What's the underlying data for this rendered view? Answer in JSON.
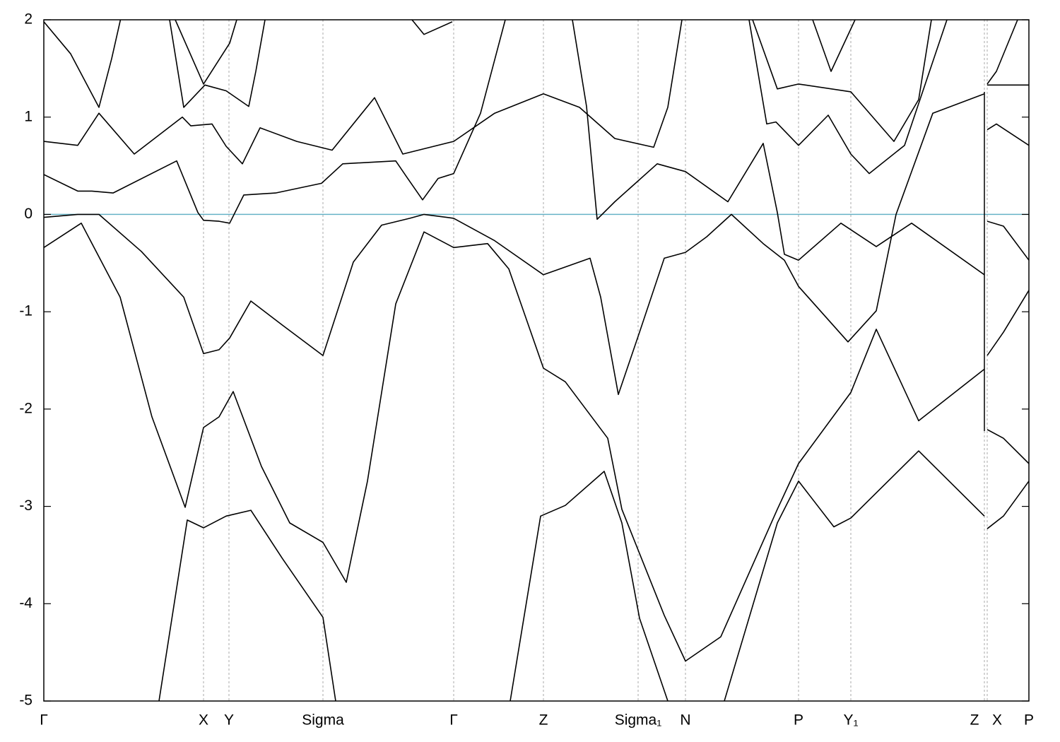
{
  "chart_data": {
    "type": "line",
    "color": "#000000",
    "grid": true,
    "fermi_level": 0,
    "fermi_color": "#66b3c6",
    "xlim": [
      0,
      1394
    ],
    "ylim": [
      -5,
      2
    ],
    "yticks": [
      -5,
      -4,
      -3,
      -2,
      -1,
      0,
      1,
      2
    ],
    "xticks": [
      {
        "value": 0,
        "label": "Γ"
      },
      {
        "value": 226,
        "label": "X"
      },
      {
        "value": 262,
        "label": "Y"
      },
      {
        "value": 395,
        "label": "Sigma"
      },
      {
        "value": 580,
        "label": "Γ"
      },
      {
        "value": 707,
        "label": "Z"
      },
      {
        "value": 841,
        "label": "Sigma₁"
      },
      {
        "value": 908,
        "label": "N"
      },
      {
        "value": 1068,
        "label": "P"
      },
      {
        "value": 1142,
        "label": "Y₁"
      },
      {
        "value": 1331,
        "label": "Z"
      },
      {
        "value": 1335,
        "label": "X"
      },
      {
        "value": 1394,
        "label": "P"
      }
    ],
    "series": [
      {
        "x": [
          0,
          38,
          78,
          96,
          110
        ],
        "values": [
          1.98,
          1.65,
          1.1,
          1.6,
          2.05
        ]
      },
      {
        "x": [
          0,
          48,
          78,
          128,
          196,
          208,
          238,
          258,
          281,
          306,
          358,
          408,
          468,
          508,
          580,
          638,
          707,
          758,
          808,
          863,
          883,
          903
        ],
        "values": [
          0.75,
          0.71,
          1.04,
          0.62,
          1.0,
          0.91,
          0.93,
          0.7,
          0.52,
          0.89,
          0.75,
          0.66,
          1.2,
          0.62,
          0.75,
          1.04,
          1.24,
          1.1,
          0.78,
          0.69,
          1.1,
          2.0
        ]
      },
      {
        "x": [
          0,
          48,
          68,
          98,
          188,
          218,
          226,
          248,
          263,
          283,
          328,
          393,
          423,
          498,
          513,
          536,
          558,
          580,
          618,
          653
        ],
        "values": [
          0.41,
          0.24,
          0.24,
          0.22,
          0.55,
          0.02,
          -0.06,
          -0.07,
          -0.09,
          0.2,
          0.22,
          0.32,
          0.52,
          0.55,
          0.39,
          0.15,
          0.37,
          0.42,
          1.04,
          2.0
        ]
      },
      {
        "x": [
          0,
          48,
          78,
          138,
          198,
          226,
          248,
          263,
          293,
          338,
          395,
          438,
          478,
          518,
          538,
          580,
          638,
          707,
          773,
          788,
          813,
          843,
          878,
          908,
          938,
          973,
          1018,
          1048,
          1068,
          1138,
          1178,
          1206,
          1258,
          1331
        ],
        "values": [
          -0.03,
          0,
          0,
          -0.38,
          -0.85,
          -1.43,
          -1.39,
          -1.27,
          -0.89,
          -1.14,
          -1.45,
          -0.49,
          -0.11,
          -0.04,
          0,
          -0.04,
          -0.27,
          -0.62,
          -0.45,
          -0.85,
          -1.85,
          -1.21,
          -0.45,
          -0.39,
          -0.23,
          0,
          -0.3,
          -0.47,
          -0.74,
          -1.31,
          -0.99,
          0,
          1.04,
          1.24
        ]
      },
      {
        "x": [
          0,
          53,
          108,
          153,
          200,
          226,
          248,
          268,
          308,
          348,
          395,
          428,
          458,
          498,
          538,
          580,
          628,
          658,
          707,
          738,
          798,
          818,
          878,
          908,
          958,
          1038,
          1068,
          1142,
          1178,
          1238,
          1331
        ],
        "values": [
          -0.34,
          -0.09,
          -0.85,
          -2.08,
          -3.01,
          -2.19,
          -2.08,
          -1.82,
          -2.59,
          -3.17,
          -3.37,
          -3.78,
          -2.74,
          -0.92,
          -0.18,
          -0.34,
          -0.3,
          -0.56,
          -1.58,
          -1.72,
          -2.3,
          -3.03,
          -4.12,
          -4.59,
          -4.34,
          -3.03,
          -2.56,
          -1.83,
          -1.18,
          -2.12,
          -1.59
        ]
      },
      {
        "x": [
          163,
          203,
          226,
          258,
          293,
          338,
          395,
          413
        ],
        "values": [
          -5,
          -3.14,
          -3.22,
          -3.1,
          -3.04,
          -3.54,
          -4.14,
          -5
        ]
      },
      {
        "x": [
          660,
          703,
          738,
          793,
          818,
          843,
          883
        ],
        "values": [
          -5,
          -3.1,
          -2.99,
          -2.64,
          -3.17,
          -4.15,
          -5
        ]
      },
      {
        "x": [
          963,
          1038,
          1068,
          1118,
          1142,
          1238,
          1331
        ],
        "values": [
          -5,
          -3.17,
          -2.74,
          -3.21,
          -3.12,
          -2.43,
          -3.1
        ]
      },
      {
        "x": [
          748,
          768,
          783,
          808,
          868,
          908,
          968,
          1018,
          1038,
          1048,
          1068,
          1128,
          1178,
          1228,
          1331
        ],
        "values": [
          2,
          1.11,
          -0.05,
          0.13,
          0.52,
          0.44,
          0.13,
          0.73,
          0.02,
          -0.41,
          -0.47,
          -0.09,
          -0.33,
          -0.09,
          -0.62
        ]
      },
      {
        "x": [
          998,
          1023,
          1036,
          1068,
          1110,
          1142,
          1168,
          1218,
          1278
        ],
        "values": [
          2,
          0.93,
          0.95,
          0.71,
          1.02,
          0.62,
          0.42,
          0.71,
          2
        ]
      },
      {
        "x": [
          1003,
          1038,
          1068,
          1142,
          1203,
          1238,
          1256
        ],
        "values": [
          2,
          1.29,
          1.34,
          1.26,
          0.75,
          1.18,
          2
        ]
      },
      {
        "x": [
          1088,
          1114,
          1148
        ],
        "values": [
          2,
          1.47,
          2
        ]
      },
      {
        "x": [
          521,
          538,
          578
        ],
        "values": [
          2,
          1.85,
          1.98
        ]
      },
      {
        "x": [
          186,
          226,
          263,
          273
        ],
        "values": [
          2,
          1.34,
          1.76,
          2
        ]
      },
      {
        "x": [
          178,
          198,
          228,
          258,
          290,
          300,
          313
        ],
        "values": [
          2,
          1.1,
          1.33,
          1.27,
          1.11,
          1.47,
          2
        ]
      },
      {
        "x": [
          1335,
          1394
        ],
        "values": [
          1.33,
          1.33
        ]
      },
      {
        "x": [
          1335,
          1348,
          1378
        ],
        "values": [
          1.34,
          1.47,
          2
        ]
      },
      {
        "x": [
          1335,
          1348,
          1394
        ],
        "values": [
          0.87,
          0.93,
          0.71
        ]
      },
      {
        "x": [
          1335,
          1358,
          1394
        ],
        "values": [
          -0.07,
          -0.12,
          -0.47
        ]
      },
      {
        "x": [
          1335,
          1358,
          1394
        ],
        "values": [
          -1.45,
          -1.21,
          -0.78
        ]
      },
      {
        "x": [
          1335,
          1358,
          1394
        ],
        "values": [
          -2.21,
          -2.3,
          -2.56
        ]
      },
      {
        "x": [
          1335,
          1358,
          1394
        ],
        "values": [
          -3.23,
          -3.1,
          -2.74
        ]
      }
    ]
  }
}
